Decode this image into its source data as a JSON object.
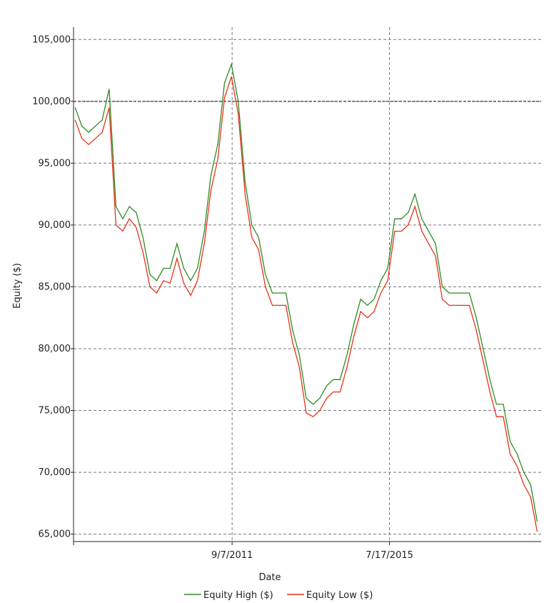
{
  "chart_data": {
    "type": "line",
    "x_label": "Date",
    "y_label": "Equity ($)",
    "x": [
      "11/1/2007",
      "1/1/2008",
      "3/1/2008",
      "5/1/2008",
      "7/1/2008",
      "9/1/2008",
      "11/1/2008",
      "1/1/2009",
      "3/1/2009",
      "5/1/2009",
      "7/1/2009",
      "9/1/2009",
      "11/1/2009",
      "1/1/2010",
      "3/1/2010",
      "5/1/2010",
      "7/1/2010",
      "9/1/2010",
      "11/1/2010",
      "1/1/2011",
      "3/1/2011",
      "5/1/2011",
      "7/1/2011",
      "9/1/2011",
      "11/1/2011",
      "1/1/2012",
      "3/1/2012",
      "5/1/2012",
      "7/1/2012",
      "9/1/2012",
      "11/1/2012",
      "1/1/2013",
      "3/1/2013",
      "5/1/2013",
      "7/1/2013",
      "9/1/2013",
      "11/1/2013",
      "1/1/2014",
      "3/1/2014",
      "5/1/2014",
      "7/1/2014",
      "9/1/2014",
      "11/1/2014",
      "1/1/2015",
      "3/1/2015",
      "5/1/2015",
      "7/1/2015",
      "9/1/2015",
      "11/1/2015",
      "1/1/2016",
      "3/1/2016",
      "5/1/2016",
      "7/1/2016",
      "9/1/2016",
      "11/1/2016",
      "1/1/2017",
      "3/1/2017",
      "5/1/2017",
      "7/1/2017",
      "9/1/2017",
      "11/1/2017",
      "1/1/2018",
      "3/1/2018",
      "5/1/2018",
      "7/1/2018",
      "9/1/2018",
      "11/1/2018",
      "1/1/2019",
      "3/1/2019"
    ],
    "series": [
      {
        "name": "Equity High ($)",
        "color": "#2e8b22",
        "values": [
          99500,
          98000,
          97500,
          98000,
          98500,
          101000,
          91500,
          90500,
          91500,
          91000,
          89000,
          86000,
          85500,
          86500,
          86500,
          88500,
          86500,
          85500,
          86500,
          89500,
          94000,
          96500,
          101500,
          103000,
          100000,
          93500,
          90000,
          89000,
          86000,
          84500,
          84500,
          84500,
          81500,
          79500,
          76000,
          75500,
          76000,
          77000,
          77500,
          77500,
          79500,
          82000,
          84000,
          83500,
          84000,
          85500,
          86500,
          90500,
          90500,
          91000,
          92500,
          90500,
          89500,
          88500,
          85000,
          84500,
          84500,
          84500,
          84500,
          82500,
          80000,
          77500,
          75500,
          75500,
          72500,
          71500,
          70000,
          69000,
          66000
        ]
      },
      {
        "name": "Equity Low ($)",
        "color": "#e8311a",
        "values": [
          98500,
          97000,
          96500,
          97000,
          97500,
          99500,
          90000,
          89500,
          90500,
          89800,
          87800,
          85000,
          84500,
          85500,
          85300,
          87300,
          85300,
          84300,
          85500,
          88500,
          92800,
          95300,
          100300,
          102000,
          99000,
          92500,
          89000,
          88000,
          85000,
          83500,
          83500,
          83500,
          80500,
          78500,
          74800,
          74500,
          75000,
          76000,
          76500,
          76500,
          78500,
          81000,
          83000,
          82500,
          83000,
          84500,
          85500,
          89500,
          89500,
          90000,
          91500,
          89500,
          88500,
          87500,
          84000,
          83500,
          83500,
          83500,
          83500,
          81500,
          79000,
          76500,
          74500,
          74500,
          71500,
          70500,
          69000,
          68000,
          65200
        ]
      }
    ],
    "xlim": [
      "10/18/2007",
      "4/5/2019"
    ],
    "xticks": [
      "9/7/2011",
      "7/17/2015"
    ],
    "ylim": [
      64400,
      106000
    ],
    "yticks": [
      {
        "value": 65000,
        "label": "65,000"
      },
      {
        "value": 70000,
        "label": "70,000"
      },
      {
        "value": 75000,
        "label": "75,000"
      },
      {
        "value": 80000,
        "label": "80,000"
      },
      {
        "value": 85000,
        "label": "85,000"
      },
      {
        "value": 90000,
        "label": "90,000"
      },
      {
        "value": 95000,
        "label": "95,000"
      },
      {
        "value": 100000,
        "label": "100,000"
      },
      {
        "value": 105000,
        "label": "105,000"
      }
    ],
    "reference_line": 100000,
    "grid": true
  }
}
